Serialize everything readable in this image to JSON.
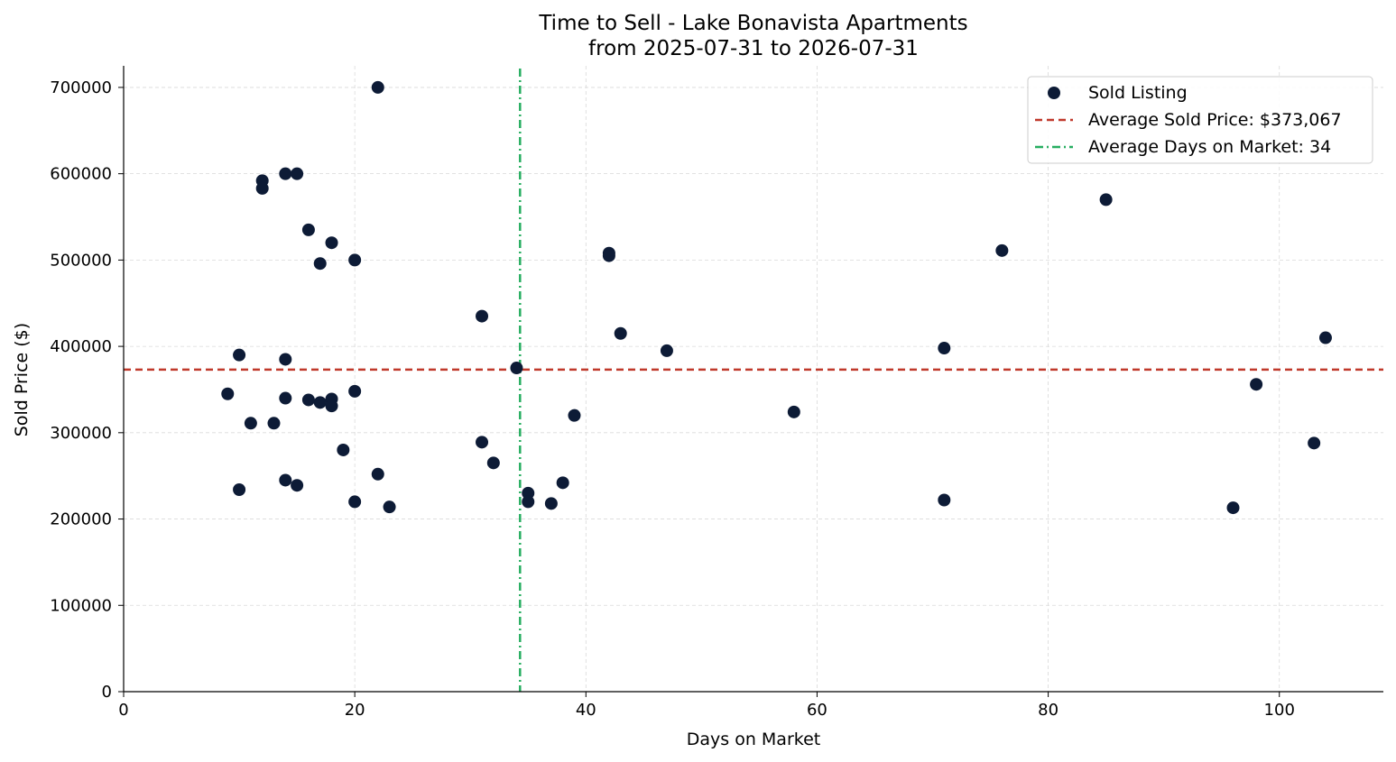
{
  "chart_data": {
    "type": "scatter",
    "title": "Time to Sell - Lake Bonavista Apartments",
    "subtitle": "from 2025-07-31 to 2026-07-31",
    "xlabel": "Days on Market",
    "ylabel": "Sold Price ($)",
    "xlim": [
      0,
      109
    ],
    "ylim": [
      0,
      725000
    ],
    "xticks": [
      0,
      20,
      40,
      60,
      80,
      100
    ],
    "yticks": [
      0,
      100000,
      200000,
      300000,
      400000,
      500000,
      600000,
      700000
    ],
    "grid": true,
    "legend_position": "top-right",
    "colors": {
      "points": "#0d1b36",
      "avg_price": "#c0392b",
      "avg_days": "#27ae60"
    },
    "legend": [
      "Sold Listing",
      "Average Sold Price: $373,067",
      "Average Days on Market: 34"
    ],
    "average_sold_price": 373067,
    "average_days_on_market": 34.3,
    "series": [
      {
        "name": "Sold Listing",
        "points": [
          [
            9,
            345000
          ],
          [
            10,
            390000
          ],
          [
            10,
            234000
          ],
          [
            11,
            311000
          ],
          [
            12,
            592000
          ],
          [
            12,
            583000
          ],
          [
            13,
            311000
          ],
          [
            14,
            600000
          ],
          [
            14,
            385000
          ],
          [
            14,
            340000
          ],
          [
            14,
            245000
          ],
          [
            15,
            600000
          ],
          [
            15,
            239000
          ],
          [
            16,
            535000
          ],
          [
            16,
            338000
          ],
          [
            17,
            496000
          ],
          [
            17,
            335000
          ],
          [
            18,
            520000
          ],
          [
            18,
            339000
          ],
          [
            18,
            331000
          ],
          [
            19,
            280000
          ],
          [
            20,
            500000
          ],
          [
            20,
            348000
          ],
          [
            20,
            220000
          ],
          [
            22,
            700000
          ],
          [
            22,
            252000
          ],
          [
            23,
            214000
          ],
          [
            31,
            435000
          ],
          [
            31,
            289000
          ],
          [
            32,
            265000
          ],
          [
            34,
            375000
          ],
          [
            35,
            230000
          ],
          [
            35,
            220000
          ],
          [
            37,
            218000
          ],
          [
            38,
            242000
          ],
          [
            39,
            320000
          ],
          [
            42,
            508000
          ],
          [
            42,
            505000
          ],
          [
            43,
            415000
          ],
          [
            47,
            395000
          ],
          [
            58,
            324000
          ],
          [
            71,
            398000
          ],
          [
            71,
            222000
          ],
          [
            76,
            511000
          ],
          [
            85,
            570000
          ],
          [
            96,
            213000
          ],
          [
            98,
            356000
          ],
          [
            103,
            288000
          ],
          [
            104,
            410000
          ]
        ]
      }
    ]
  }
}
